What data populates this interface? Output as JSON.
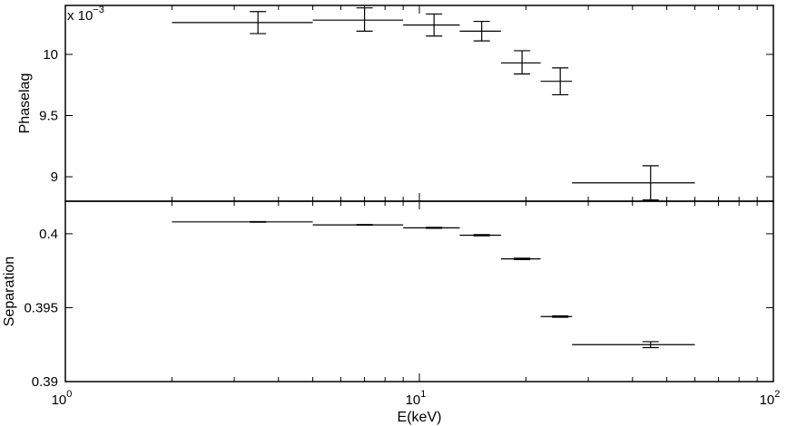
{
  "chart_data": [
    {
      "type": "scatter",
      "panel": "top",
      "ylabel": "Phaselag",
      "exponent_label": "x 10",
      "exponent_power": "−3",
      "yscale_factor": 0.001,
      "ylim": [
        8.8,
        10.4
      ],
      "yticks": [
        9,
        9.5,
        10
      ],
      "ytick_labels": [
        "9",
        "9.5",
        "10"
      ],
      "xscale": "log",
      "xlim": [
        1,
        100
      ],
      "points": [
        {
          "x": 3.5,
          "xlo": 2.0,
          "xhi": 5.0,
          "y": 10.26,
          "ylo": 10.17,
          "yhi": 10.35
        },
        {
          "x": 7.0,
          "xlo": 5.0,
          "xhi": 9.0,
          "y": 10.28,
          "ylo": 10.19,
          "yhi": 10.38
        },
        {
          "x": 11.0,
          "xlo": 9.0,
          "xhi": 13.0,
          "y": 10.24,
          "ylo": 10.15,
          "yhi": 10.33
        },
        {
          "x": 15.0,
          "xlo": 13.0,
          "xhi": 17.0,
          "y": 10.19,
          "ylo": 10.11,
          "yhi": 10.27
        },
        {
          "x": 19.5,
          "xlo": 17.0,
          "xhi": 22.0,
          "y": 9.93,
          "ylo": 9.84,
          "yhi": 10.03
        },
        {
          "x": 25.0,
          "xlo": 22.0,
          "xhi": 27.0,
          "y": 9.78,
          "ylo": 9.67,
          "yhi": 9.89
        },
        {
          "x": 45.0,
          "xlo": 27.0,
          "xhi": 60.0,
          "y": 8.95,
          "ylo": 8.81,
          "yhi": 9.09
        }
      ]
    },
    {
      "type": "scatter",
      "panel": "bottom",
      "ylabel": "Separation",
      "xlabel": "E(keV)",
      "ylim": [
        0.39,
        0.4022
      ],
      "yticks": [
        0.39,
        0.395,
        0.4
      ],
      "ytick_labels": [
        "0.39",
        "0.395",
        "0.4"
      ],
      "xscale": "log",
      "xlim": [
        1,
        100
      ],
      "xticks": [
        1,
        10,
        100
      ],
      "xtick_labels": [
        {
          "base": "10",
          "exp": "0"
        },
        {
          "base": "10",
          "exp": "1"
        },
        {
          "base": "10",
          "exp": "2"
        }
      ],
      "points": [
        {
          "x": 3.5,
          "xlo": 2.0,
          "xhi": 5.0,
          "y": 0.4008,
          "ylo": 0.40078,
          "yhi": 0.40082
        },
        {
          "x": 7.0,
          "xlo": 5.0,
          "xhi": 9.0,
          "y": 0.4006,
          "ylo": 0.40058,
          "yhi": 0.40062
        },
        {
          "x": 11.0,
          "xlo": 9.0,
          "xhi": 13.0,
          "y": 0.4004,
          "ylo": 0.40037,
          "yhi": 0.40043
        },
        {
          "x": 15.0,
          "xlo": 13.0,
          "xhi": 17.0,
          "y": 0.3999,
          "ylo": 0.39986,
          "yhi": 0.39994
        },
        {
          "x": 19.5,
          "xlo": 17.0,
          "xhi": 22.0,
          "y": 0.3983,
          "ylo": 0.39825,
          "yhi": 0.39835
        },
        {
          "x": 25.0,
          "xlo": 22.0,
          "xhi": 27.0,
          "y": 0.3944,
          "ylo": 0.39435,
          "yhi": 0.39445
        },
        {
          "x": 45.0,
          "xlo": 27.0,
          "xhi": 60.0,
          "y": 0.3925,
          "ylo": 0.3923,
          "yhi": 0.3927
        }
      ]
    }
  ]
}
